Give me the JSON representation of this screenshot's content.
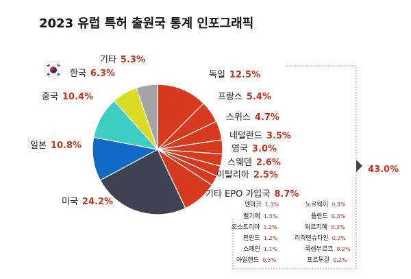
{
  "title": "2023 유럽 특허 출원국 통계 인포그래픽",
  "chart_data": {
    "type": "pie",
    "title": "2023 유럽 특허 출원국 통계 인포그래픽",
    "slices": [
      {
        "label": "독일",
        "value": 12.5,
        "value_label": "12.5%",
        "color": "#d63a1f"
      },
      {
        "label": "프랑스",
        "value": 5.4,
        "value_label": "5.4%",
        "color": "#d63a1f"
      },
      {
        "label": "스위스",
        "value": 4.7,
        "value_label": "4.7%",
        "color": "#d63a1f"
      },
      {
        "label": "네덜란드",
        "value": 3.5,
        "value_label": "3.5%",
        "color": "#d63a1f"
      },
      {
        "label": "영국",
        "value": 3.0,
        "value_label": "3.0%",
        "color": "#d63a1f"
      },
      {
        "label": "스웨덴",
        "value": 2.6,
        "value_label": "2.6%",
        "color": "#d63a1f"
      },
      {
        "label": "이탈리아",
        "value": 2.5,
        "value_label": "2.5%",
        "color": "#d63a1f"
      },
      {
        "label": "기타 EPO 가입국",
        "value": 8.7,
        "value_label": "8.7%",
        "color": "#d63a1f"
      },
      {
        "label": "미국",
        "value": 24.2,
        "value_label": "24.2%",
        "color": "#3d4452"
      },
      {
        "label": "일본",
        "value": 10.8,
        "value_label": "10.8%",
        "color": "#1268c6"
      },
      {
        "label": "중국",
        "value": 10.4,
        "value_label": "10.4%",
        "color": "#3ecdc1"
      },
      {
        "label": "한국",
        "value": 6.3,
        "value_label": "6.3%",
        "color": "#d9dc23"
      },
      {
        "label": "기타",
        "value": 5.3,
        "value_label": "5.3%",
        "color": "#a5a5a5"
      }
    ],
    "bracket_total": "43.0%",
    "other_epo_breakdown": [
      {
        "label": "덴마크",
        "value": "1.3%"
      },
      {
        "label": "벨기에",
        "value": "1.3%"
      },
      {
        "label": "오스트리아",
        "value": "1.2%"
      },
      {
        "label": "핀란드",
        "value": "1.2%"
      },
      {
        "label": "스페인",
        "value": "1.1%"
      },
      {
        "label": "아일랜드",
        "value": "0.5%"
      },
      {
        "label": "노르웨이",
        "value": "0.3%"
      },
      {
        "label": "폴란드",
        "value": "0.3%"
      },
      {
        "label": "튀르키예",
        "value": "0.3%"
      },
      {
        "label": "리히텐슈타인",
        "value": "0.2%"
      },
      {
        "label": "룩셈부르크",
        "value": "0.2%"
      },
      {
        "label": "포르투갈",
        "value": "0.2%"
      }
    ]
  }
}
